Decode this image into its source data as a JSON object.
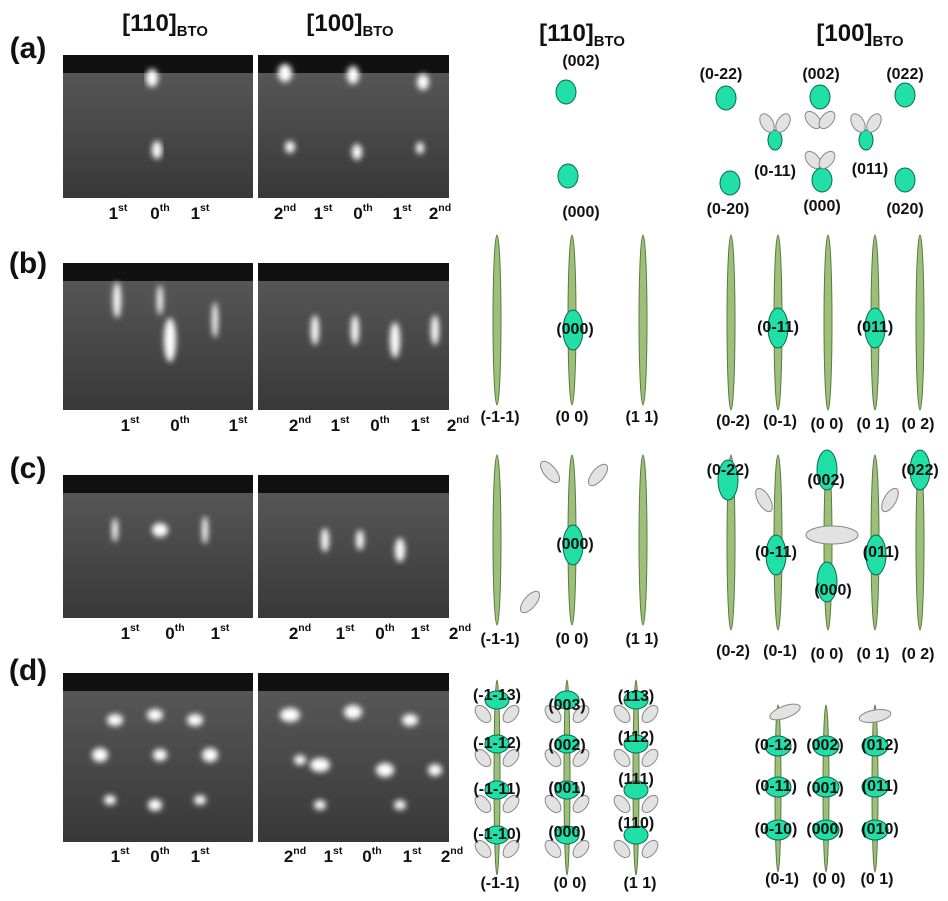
{
  "headers": [
    {
      "main": "[110]",
      "sub": "BTO"
    },
    {
      "main": "[100]",
      "sub": "BTO"
    },
    {
      "main": "[110]",
      "sub": "BTO"
    },
    {
      "main": "[100]",
      "sub": "BTO"
    }
  ],
  "rows": [
    {
      "label": "(a)",
      "orders_110": [
        {
          "n": "1",
          "sup": "st"
        },
        {
          "n": "0",
          "sup": "th"
        },
        {
          "n": "1",
          "sup": "st"
        }
      ],
      "orders_100": [
        {
          "n": "2",
          "sup": "nd"
        },
        {
          "n": "1",
          "sup": "st"
        },
        {
          "n": "0",
          "sup": "th"
        },
        {
          "n": "1",
          "sup": "st"
        },
        {
          "n": "2",
          "sup": "nd"
        }
      ],
      "diagram_110": [
        "(002)",
        "(000)"
      ],
      "diagram_100": [
        "(0-22)",
        "(002)",
        "(022)",
        "(0-11)",
        "(011)",
        "(0-20)",
        "(000)",
        "(020)"
      ]
    },
    {
      "label": "(b)",
      "orders_110": [
        {
          "n": "1",
          "sup": "st"
        },
        {
          "n": "0",
          "sup": "th"
        },
        {
          "n": "1",
          "sup": "st"
        }
      ],
      "orders_100": [
        {
          "n": "2",
          "sup": "nd"
        },
        {
          "n": "1",
          "sup": "st"
        },
        {
          "n": "0",
          "sup": "th"
        },
        {
          "n": "1",
          "sup": "st"
        },
        {
          "n": "2",
          "sup": "nd"
        }
      ],
      "diagram_110": [
        "(000)",
        "(-1-1)",
        "(0 0)",
        "(1 1)"
      ],
      "diagram_100": [
        "(0-11)",
        "(011)",
        "(0-2)",
        "(0-1)",
        "(0 0)",
        "(0 1)",
        "(0 2)"
      ]
    },
    {
      "label": "(c)",
      "orders_110": [
        {
          "n": "1",
          "sup": "st"
        },
        {
          "n": "0",
          "sup": "th"
        },
        {
          "n": "1",
          "sup": "st"
        }
      ],
      "orders_100": [
        {
          "n": "2",
          "sup": "nd"
        },
        {
          "n": "1",
          "sup": "st"
        },
        {
          "n": "0",
          "sup": "th"
        },
        {
          "n": "1",
          "sup": "st"
        },
        {
          "n": "2",
          "sup": "nd"
        }
      ],
      "diagram_110": [
        "(000)",
        "(-1-1)",
        "(0 0)",
        "(1 1)"
      ],
      "diagram_100": [
        "(0-22)",
        "(002)",
        "(022)",
        "(0-11)",
        "(011)",
        "(000)",
        "(0-2)",
        "(0-1)",
        "(0 0)",
        "(0 1)",
        "(0 2)"
      ]
    },
    {
      "label": "(d)",
      "orders_110": [
        {
          "n": "1",
          "sup": "st"
        },
        {
          "n": "0",
          "sup": "th"
        },
        {
          "n": "1",
          "sup": "st"
        }
      ],
      "orders_100": [
        {
          "n": "2",
          "sup": "nd"
        },
        {
          "n": "1",
          "sup": "st"
        },
        {
          "n": "0",
          "sup": "th"
        },
        {
          "n": "1",
          "sup": "st"
        },
        {
          "n": "2",
          "sup": "nd"
        }
      ],
      "diagram_110": [
        "(-1-13)",
        "(-1-12)",
        "(-1-11)",
        "(-1-10)",
        "(003)",
        "(002)",
        "(001)",
        "(000)",
        "(113)",
        "(112)",
        "(111)",
        "(110)",
        "(-1-1)",
        "(0 0)",
        "(1 1)"
      ],
      "diagram_100": [
        "(0-12)",
        "(002)",
        "(012)",
        "(0-11)",
        "(001)",
        "(011)",
        "(0-10)",
        "(000)",
        "(010)",
        "(0-1)",
        "(0 0)",
        "(0 1)"
      ]
    }
  ]
}
